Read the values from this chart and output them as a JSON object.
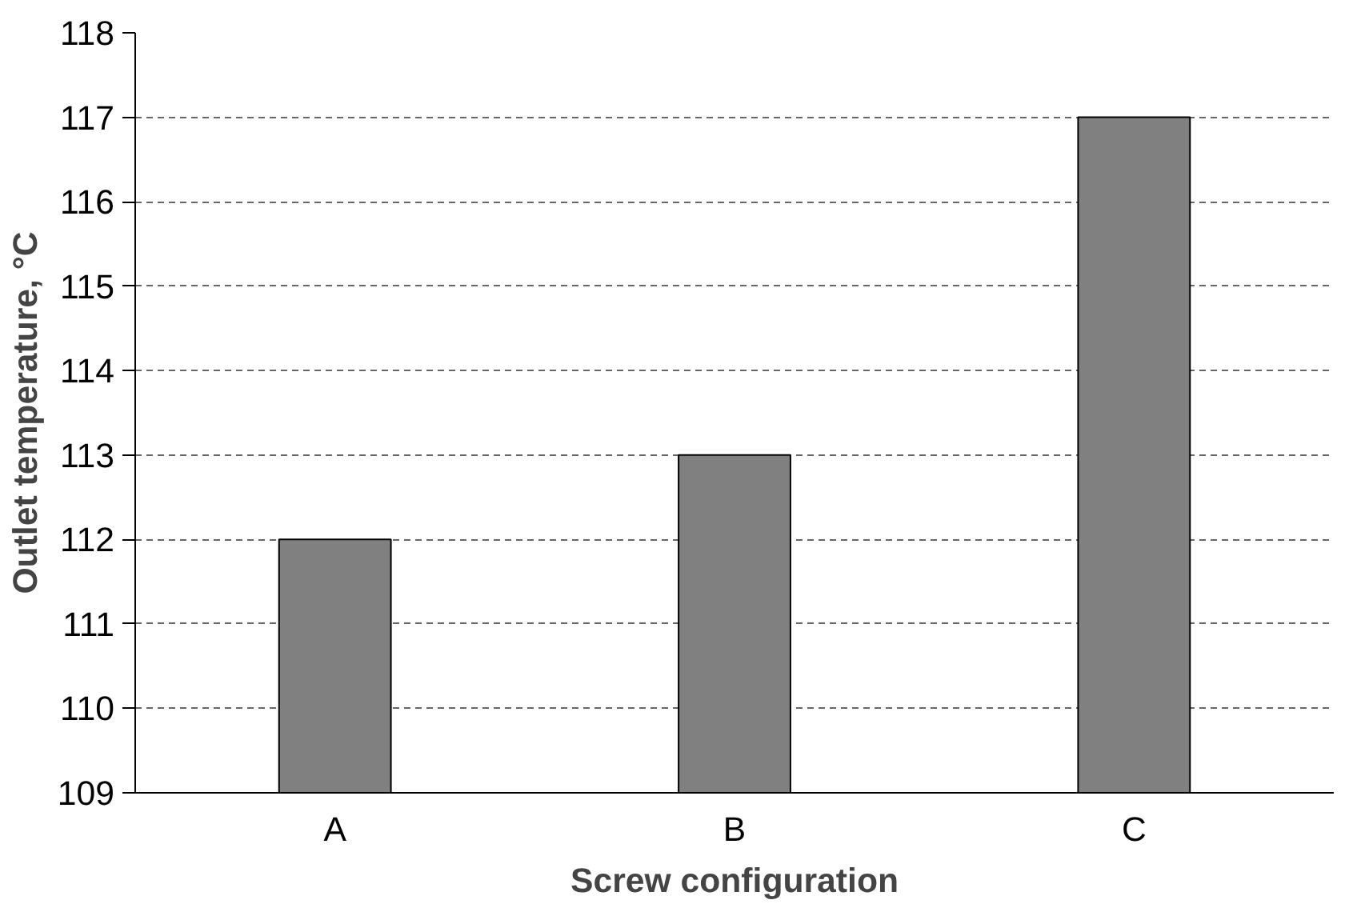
{
  "chart_data": {
    "type": "bar",
    "xlabel": "Screw configuration",
    "ylabel": "Outlet temperature, °C",
    "categories": [
      "A",
      "B",
      "C"
    ],
    "values": [
      112,
      113,
      117
    ],
    "color": "#808080",
    "ylim": [
      109,
      118
    ],
    "yticks": [
      109,
      110,
      111,
      112,
      113,
      114,
      115,
      116,
      117,
      118
    ],
    "grid": "y",
    "line_style": "dashed"
  }
}
